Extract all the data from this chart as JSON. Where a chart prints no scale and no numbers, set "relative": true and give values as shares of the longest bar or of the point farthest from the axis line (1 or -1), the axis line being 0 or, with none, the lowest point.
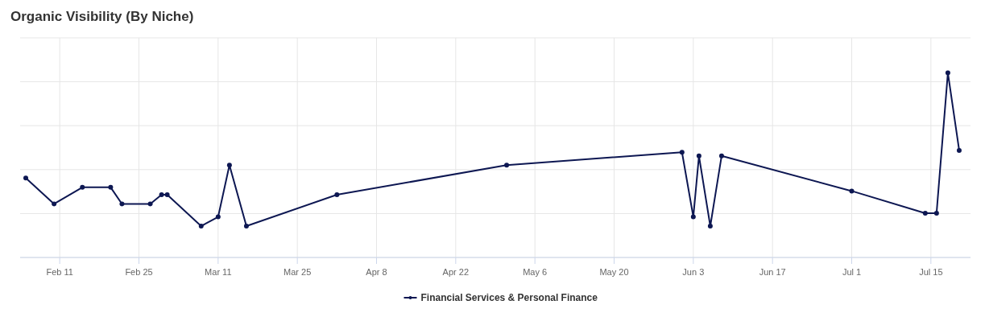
{
  "chart_data": {
    "type": "line",
    "title": "Organic Visibility (By Niche)",
    "relative": true,
    "x": [
      "--02-05",
      "--02-10",
      "--02-15",
      "--02-20",
      "--02-22",
      "--02-27",
      "--03-01",
      "--03-02",
      "--03-08",
      "--03-11",
      "--03-13",
      "--03-16",
      "--04-01",
      "--05-01",
      "--06-01",
      "--06-03",
      "--06-04",
      "--06-06",
      "--06-08",
      "--07-01",
      "--07-14",
      "--07-16",
      "--07-18",
      "--07-20"
    ],
    "series": [
      {
        "name": "Financial Services & Personal Finance",
        "color": "#0d1752",
        "values": [
          0.43,
          0.29,
          0.38,
          0.38,
          0.29,
          0.29,
          0.34,
          0.34,
          0.17,
          0.22,
          0.5,
          0.17,
          0.34,
          0.5,
          0.57,
          0.22,
          0.55,
          0.17,
          0.55,
          0.36,
          0.24,
          0.24,
          1,
          0.58
        ]
      }
    ],
    "xlim": [
      "--02-04",
      "--07-22"
    ],
    "xticks": [
      {
        "value": "--02-11",
        "label": "Feb 11"
      },
      {
        "value": "--02-25",
        "label": "Feb 25"
      },
      {
        "value": "--03-11",
        "label": "Mar 11"
      },
      {
        "value": "--03-25",
        "label": "Mar 25"
      },
      {
        "value": "--04-08",
        "label": "Apr 8"
      },
      {
        "value": "--04-22",
        "label": "Apr 22"
      },
      {
        "value": "--05-06",
        "label": "May 6"
      },
      {
        "value": "--05-20",
        "label": "May 20"
      },
      {
        "value": "--06-03",
        "label": "Jun 3"
      },
      {
        "value": "--06-17",
        "label": "Jun 17"
      },
      {
        "value": "--07-01",
        "label": "Jul 1"
      },
      {
        "value": "--07-15",
        "label": "Jul 15"
      }
    ],
    "grid": true,
    "legend": "bottom",
    "marker": "circle",
    "line_style": "solid"
  }
}
